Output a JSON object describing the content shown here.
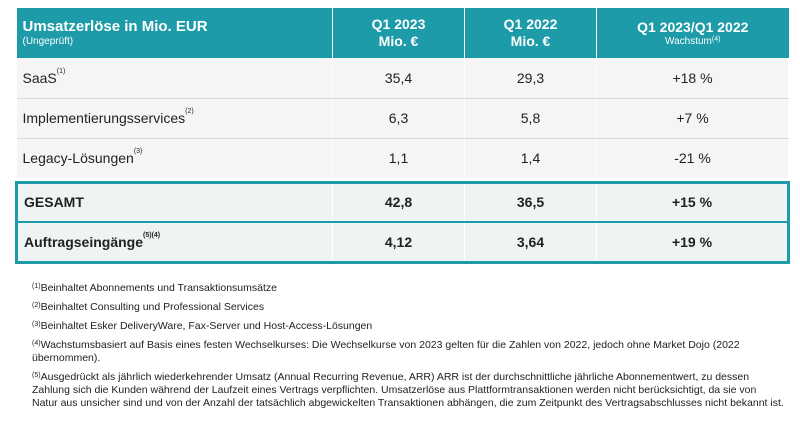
{
  "table": {
    "header": {
      "title": "Umsatzerlöse in Mio. EUR",
      "subtitle": "(Ungeprüft)",
      "col1_line1": "Q1 2023",
      "col1_line2": "Mio. €",
      "col2_line1": "Q1 2022",
      "col2_line2": "Mio. €",
      "col3_line1": "Q1 2023/Q1 2022",
      "col3_line2": "Wachstum",
      "col3_sup": "(4)"
    },
    "rows": [
      {
        "label": "SaaS",
        "sup": "(1)",
        "q1_2023": "35,4",
        "q1_2022": "29,3",
        "growth": "+18 %"
      },
      {
        "label": "Implementierungsservices",
        "sup": "(2)",
        "q1_2023": "6,3",
        "q1_2022": "5,8",
        "growth": "+7 %"
      },
      {
        "label": "Legacy-Lösungen",
        "sup": "(3)",
        "q1_2023": "1,1",
        "q1_2022": "1,4",
        "growth": "-21 %"
      }
    ],
    "total": {
      "label": "GESAMT",
      "q1_2023": "42,8",
      "q1_2022": "36,5",
      "growth": "+15 %"
    },
    "orders": {
      "label": "Auftragseingänge",
      "sup": "(5)(4)",
      "q1_2023": "4,12",
      "q1_2022": "3,64",
      "growth": "+19 %"
    }
  },
  "footnotes": [
    {
      "mark": "(1)",
      "text": "Beinhaltet Abonnements und Transaktionsumsätze"
    },
    {
      "mark": "(2)",
      "text": "Beinhaltet Consulting und Professional Services"
    },
    {
      "mark": "(3)",
      "text": "Beinhaltet Esker DeliveryWare, Fax-Server und Host-Access-Lösungen"
    },
    {
      "mark": "(4)",
      "text": "Wachstumsbasiert auf Basis eines festen Wechselkurses: Die Wechselkurse von 2023 gelten für die Zahlen von 2022, jedoch ohne Market Dojo (2022 übernommen)."
    },
    {
      "mark": "(5)",
      "text": "Ausgedrückt als jährlich wiederkehrender Umsatz (Annual Recurring Revenue, ARR) ARR ist der durchschnittliche jährliche Abonnementwert, zu dessen Zahlung sich die Kunden während der Laufzeit eines Vertrags verpflichten. Umsatzerlöse aus Plattformtransaktionen werden nicht berücksichtigt, da sie von Natur aus unsicher sind und von der Anzahl der tatsächlich abgewickelten Transaktionen abhängen, die zum Zeitpunkt des Vertragsabschlusses nicht bekannt ist."
    }
  ],
  "colors": {
    "accent": "#1d9ba8",
    "row_bg": "#f5f5f5",
    "total_bg": "#eef3f4"
  }
}
